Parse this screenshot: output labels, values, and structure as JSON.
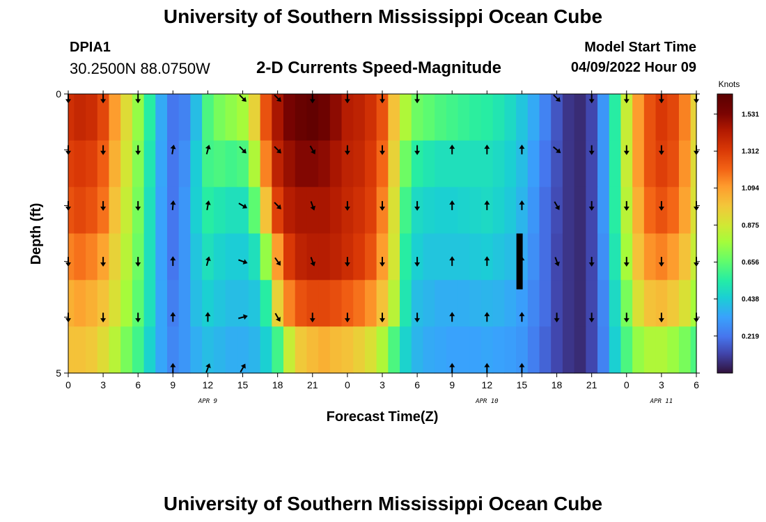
{
  "header": {
    "title": "University of Southern Mississippi Ocean Cube",
    "station_id": "DPIA1",
    "coordinates": "30.2500N  88.0750W",
    "subtitle": "2-D Currents Speed-Magnitude",
    "model_start_label": "Model Start Time",
    "model_start_value": "04/09/2022 Hour 09"
  },
  "footer": {
    "title": "University of Southern Mississippi Ocean Cube"
  },
  "chart_data": {
    "type": "heatmap",
    "title": "2-D Currents Speed-Magnitude",
    "xlabel": "Forecast Time(Z)",
    "ylabel": "Depth (ft)",
    "x_hours": [
      0,
      3,
      6,
      9,
      12,
      15,
      18,
      21,
      24,
      27,
      30,
      33,
      36,
      39,
      42,
      45,
      48,
      51,
      54
    ],
    "x_tick_labels": [
      "0",
      "3",
      "6",
      "9",
      "12",
      "15",
      "18",
      "21",
      "0",
      "3",
      "6",
      "9",
      "12",
      "15",
      "18",
      "21",
      "0",
      "3",
      "6"
    ],
    "x_range_hours": [
      0,
      54
    ],
    "date_labels": [
      {
        "hour": 12,
        "text": "APR 9"
      },
      {
        "hour": 36,
        "text": "APR 10"
      },
      {
        "hour": 51,
        "text": "APR 11"
      }
    ],
    "y_range_ft": [
      0,
      5
    ],
    "y_tick_labels": [
      {
        "value": 0,
        "text": "0"
      },
      {
        "value": 5,
        "text": "5"
      }
    ],
    "colorbar": {
      "unit": "Knots",
      "min": 0.0,
      "max": 1.65,
      "ticks": [
        0.219,
        0.438,
        0.656,
        0.875,
        1.094,
        1.312,
        1.531
      ],
      "tick_labels": [
        "0.219",
        "0.438",
        "0.656",
        "0.875",
        "1.094",
        "1.312",
        "1.531"
      ]
    },
    "speed_profile_knots": {
      "hours": [
        0,
        1,
        2,
        3,
        4,
        5,
        6,
        7,
        8,
        9,
        10,
        11,
        12,
        13,
        14,
        15,
        16,
        17,
        18,
        19,
        20,
        21,
        22,
        23,
        24,
        25,
        26,
        27,
        28,
        29,
        30,
        31,
        32,
        33,
        34,
        35,
        36,
        37,
        38,
        39,
        40,
        41,
        42,
        43,
        44,
        45,
        46,
        47,
        48,
        49,
        50,
        51,
        52,
        53,
        54
      ],
      "layers": [
        [
          1.35,
          1.38,
          1.36,
          1.28,
          1.1,
          0.92,
          0.75,
          0.55,
          0.35,
          0.22,
          0.25,
          0.4,
          0.62,
          0.7,
          0.74,
          0.78,
          0.95,
          1.25,
          1.45,
          1.55,
          1.6,
          1.62,
          1.58,
          1.5,
          1.42,
          1.4,
          1.35,
          1.25,
          1.0,
          0.8,
          0.68,
          0.65,
          0.62,
          0.6,
          0.58,
          0.56,
          0.55,
          0.52,
          0.48,
          0.42,
          0.35,
          0.25,
          0.15,
          0.08,
          0.06,
          0.12,
          0.3,
          0.55,
          0.85,
          1.1,
          1.25,
          1.32,
          1.28,
          1.15,
          0.95
        ],
        [
          1.3,
          1.32,
          1.3,
          1.22,
          1.05,
          0.88,
          0.72,
          0.52,
          0.34,
          0.22,
          0.28,
          0.44,
          0.6,
          0.62,
          0.6,
          0.62,
          0.8,
          1.15,
          1.4,
          1.48,
          1.52,
          1.52,
          1.5,
          1.45,
          1.4,
          1.38,
          1.32,
          1.2,
          0.95,
          0.68,
          0.55,
          0.52,
          0.5,
          0.5,
          0.5,
          0.5,
          0.5,
          0.48,
          0.45,
          0.4,
          0.32,
          0.22,
          0.14,
          0.08,
          0.06,
          0.12,
          0.3,
          0.55,
          0.85,
          1.1,
          1.25,
          1.3,
          1.26,
          1.12,
          0.92
        ],
        [
          1.25,
          1.28,
          1.25,
          1.18,
          1.0,
          0.85,
          0.7,
          0.5,
          0.33,
          0.22,
          0.3,
          0.45,
          0.55,
          0.52,
          0.5,
          0.5,
          0.65,
          1.0,
          1.3,
          1.42,
          1.45,
          1.45,
          1.45,
          1.42,
          1.38,
          1.35,
          1.3,
          1.15,
          0.9,
          0.6,
          0.48,
          0.46,
          0.45,
          0.45,
          0.46,
          0.47,
          0.48,
          0.46,
          0.43,
          0.38,
          0.3,
          0.2,
          0.13,
          0.08,
          0.06,
          0.12,
          0.3,
          0.55,
          0.82,
          1.05,
          1.2,
          1.25,
          1.2,
          1.08,
          0.9
        ],
        [
          1.15,
          1.18,
          1.15,
          1.08,
          0.95,
          0.82,
          0.68,
          0.5,
          0.33,
          0.22,
          0.3,
          0.42,
          0.5,
          0.46,
          0.44,
          0.44,
          0.5,
          0.75,
          1.1,
          1.32,
          1.4,
          1.42,
          1.42,
          1.4,
          1.36,
          1.32,
          1.25,
          1.1,
          0.88,
          0.55,
          0.45,
          0.42,
          0.42,
          0.42,
          0.42,
          0.43,
          0.44,
          0.42,
          0.4,
          0.35,
          0.28,
          0.2,
          0.12,
          0.08,
          0.06,
          0.12,
          0.28,
          0.52,
          0.78,
          1.0,
          1.12,
          1.15,
          1.1,
          1.0,
          0.85
        ],
        [
          1.05,
          1.08,
          1.05,
          1.0,
          0.9,
          0.78,
          0.65,
          0.5,
          0.34,
          0.24,
          0.3,
          0.4,
          0.45,
          0.42,
          0.4,
          0.4,
          0.42,
          0.55,
          0.95,
          1.15,
          1.25,
          1.28,
          1.28,
          1.26,
          1.22,
          1.18,
          1.12,
          1.0,
          0.82,
          0.52,
          0.4,
          0.38,
          0.36,
          0.36,
          0.36,
          0.37,
          0.38,
          0.37,
          0.35,
          0.32,
          0.26,
          0.2,
          0.12,
          0.08,
          0.06,
          0.12,
          0.26,
          0.48,
          0.7,
          0.9,
          1.0,
          1.02,
          0.98,
          0.9,
          0.78
        ],
        [
          1.0,
          1.0,
          0.98,
          0.92,
          0.82,
          0.7,
          0.6,
          0.46,
          0.34,
          0.26,
          0.3,
          0.36,
          0.4,
          0.38,
          0.36,
          0.36,
          0.38,
          0.45,
          0.6,
          0.85,
          0.98,
          1.02,
          1.05,
          1.02,
          1.0,
          0.96,
          0.9,
          0.8,
          0.62,
          0.46,
          0.38,
          0.35,
          0.34,
          0.33,
          0.33,
          0.33,
          0.34,
          0.33,
          0.32,
          0.3,
          0.24,
          0.18,
          0.12,
          0.08,
          0.06,
          0.12,
          0.25,
          0.45,
          0.62,
          0.75,
          0.8,
          0.8,
          0.76,
          0.7,
          0.62
        ]
      ]
    },
    "vectors": {
      "depth_rows_ft": [
        0,
        1,
        2,
        3,
        4,
        5
      ],
      "hours": [
        0,
        3,
        6,
        9,
        12,
        15,
        18,
        21,
        24,
        27,
        30,
        33,
        36,
        39,
        42,
        45,
        48,
        51,
        54
      ],
      "directions_deg": [
        [
          180,
          180,
          180,
          null,
          null,
          135,
          135,
          180,
          180,
          180,
          180,
          null,
          null,
          null,
          135,
          180,
          180,
          180,
          180
        ],
        [
          180,
          180,
          180,
          10,
          15,
          135,
          135,
          150,
          180,
          180,
          180,
          0,
          0,
          0,
          130,
          180,
          180,
          180,
          180
        ],
        [
          180,
          180,
          180,
          5,
          10,
          120,
          135,
          160,
          180,
          180,
          180,
          0,
          0,
          0,
          150,
          180,
          180,
          180,
          180
        ],
        [
          180,
          180,
          180,
          0,
          15,
          110,
          145,
          160,
          180,
          180,
          180,
          0,
          0,
          0,
          160,
          180,
          180,
          180,
          180
        ],
        [
          180,
          180,
          180,
          0,
          0,
          75,
          150,
          180,
          180,
          180,
          180,
          0,
          0,
          0,
          180,
          180,
          180,
          180,
          180
        ],
        [
          null,
          null,
          null,
          0,
          20,
          30,
          null,
          null,
          null,
          null,
          null,
          0,
          0,
          0,
          null,
          null,
          null,
          null,
          null
        ]
      ]
    },
    "annotations": [
      {
        "type": "bar",
        "hour": 38.8,
        "depth_from_ft": 2.5,
        "depth_to_ft": 3.5
      }
    ]
  }
}
